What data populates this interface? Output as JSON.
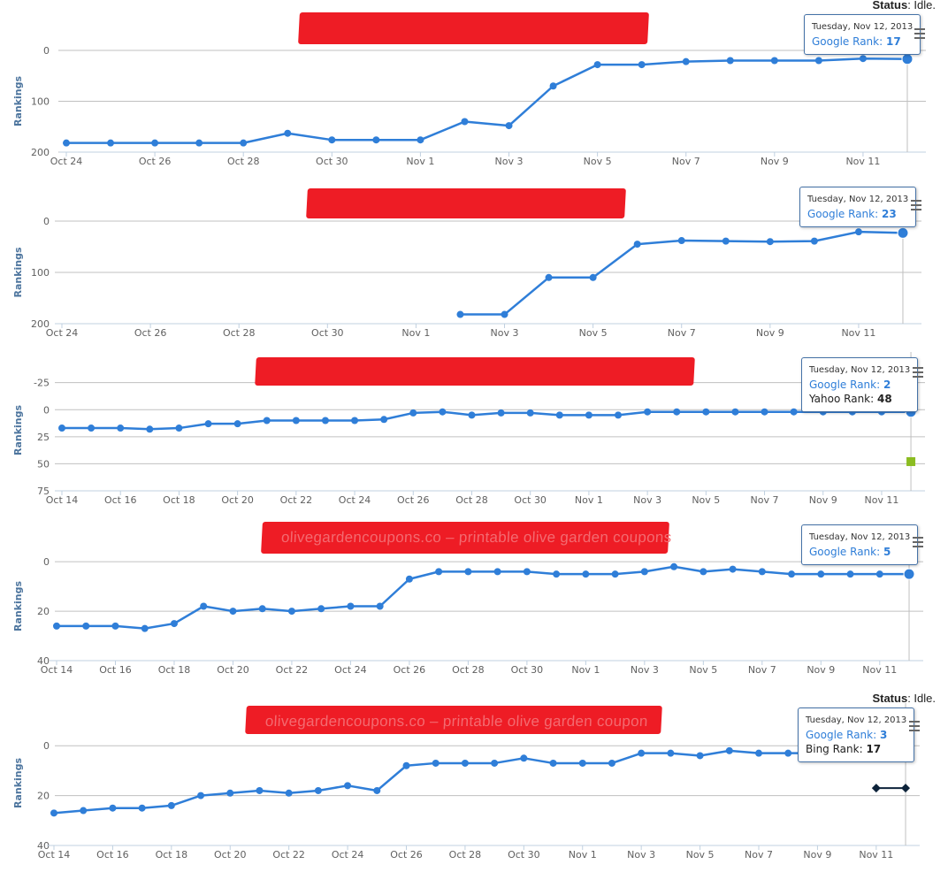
{
  "status": {
    "label": "Status",
    "value": " Idle."
  },
  "colors": {
    "line": "#2f7ed8",
    "grid": "#c0c0c0",
    "axis": "#c0d0e0",
    "yahoo": "#8bbc21",
    "bing": "#0d233a",
    "redaction": "#ee1c25"
  },
  "menu_icon": "hamburger-menu-icon",
  "chart_data": [
    {
      "type": "line",
      "title": "",
      "ylabel": "Rankings",
      "ylim": [
        200,
        0
      ],
      "yticks": [
        0,
        100,
        200
      ],
      "xticks": [
        "Oct 24",
        "Oct 26",
        "Oct 28",
        "Oct 30",
        "Nov 1",
        "Nov 3",
        "Nov 5",
        "Nov 7",
        "Nov 9",
        "Nov 11"
      ],
      "x_start": "Oct 24",
      "series": [
        {
          "name": "Google Rank",
          "x": [
            "Oct 24",
            "Oct 25",
            "Oct 26",
            "Oct 27",
            "Oct 28",
            "Oct 29",
            "Oct 30",
            "Oct 31",
            "Nov 1",
            "Nov 2",
            "Nov 3",
            "Nov 4",
            "Nov 5",
            "Nov 6",
            "Nov 7",
            "Nov 8",
            "Nov 9",
            "Nov 10",
            "Nov 11",
            "Nov 12"
          ],
          "values": [
            182,
            182,
            182,
            182,
            182,
            163,
            176,
            176,
            176,
            140,
            148,
            70,
            28,
            28,
            22,
            20,
            20,
            20,
            16,
            17
          ]
        }
      ],
      "tooltip": {
        "date": "Tuesday, Nov 12, 2013",
        "rows": [
          {
            "label": "Google Rank: ",
            "value": "17"
          }
        ]
      },
      "title_text": "",
      "status_visible": true
    },
    {
      "type": "line",
      "title": "",
      "ylabel": "Rankings",
      "ylim": [
        200,
        0
      ],
      "yticks": [
        0,
        100,
        200
      ],
      "xticks": [
        "Oct 24",
        "Oct 26",
        "Oct 28",
        "Oct 30",
        "Nov 1",
        "Nov 3",
        "Nov 5",
        "Nov 7",
        "Nov 9",
        "Nov 11"
      ],
      "x_start": "Oct 24",
      "series": [
        {
          "name": "Google Rank",
          "x": [
            "Nov 2",
            "Nov 3",
            "Nov 4",
            "Nov 5",
            "Nov 6",
            "Nov 7",
            "Nov 8",
            "Nov 9",
            "Nov 10",
            "Nov 11",
            "Nov 12"
          ],
          "values": [
            182,
            182,
            110,
            110,
            45,
            38,
            39,
            40,
            39,
            21,
            23
          ]
        }
      ],
      "tooltip": {
        "date": "Tuesday, Nov 12, 2013",
        "rows": [
          {
            "label": "Google Rank: ",
            "value": "23"
          }
        ]
      },
      "title_text": ""
    },
    {
      "type": "line",
      "title": "",
      "ylabel": "Rankings",
      "ylim": [
        75,
        -37
      ],
      "yticks": [
        -25,
        0,
        25,
        50,
        75
      ],
      "xticks": [
        "Oct 14",
        "Oct 16",
        "Oct 18",
        "Oct 20",
        "Oct 22",
        "Oct 24",
        "Oct 26",
        "Oct 28",
        "Oct 30",
        "Nov 1",
        "Nov 3",
        "Nov 5",
        "Nov 7",
        "Nov 9",
        "Nov 11"
      ],
      "x_start": "Oct 14",
      "series": [
        {
          "name": "Google Rank",
          "x": [
            "Oct 14",
            "Oct 15",
            "Oct 16",
            "Oct 17",
            "Oct 18",
            "Oct 19",
            "Oct 20",
            "Oct 21",
            "Oct 22",
            "Oct 23",
            "Oct 24",
            "Oct 25",
            "Oct 26",
            "Oct 27",
            "Oct 28",
            "Oct 29",
            "Oct 30",
            "Oct 31",
            "Nov 1",
            "Nov 2",
            "Nov 3",
            "Nov 4",
            "Nov 5",
            "Nov 6",
            "Nov 7",
            "Nov 8",
            "Nov 9",
            "Nov 10",
            "Nov 11",
            "Nov 12"
          ],
          "values": [
            17,
            17,
            17,
            18,
            17,
            13,
            13,
            10,
            10,
            10,
            10,
            9,
            3,
            2,
            5,
            3,
            3,
            5,
            5,
            5,
            2,
            2,
            2,
            2,
            2,
            2,
            2,
            2,
            2,
            2
          ]
        },
        {
          "name": "Yahoo Rank",
          "x": [
            "Nov 12"
          ],
          "values": [
            48
          ],
          "marker": "square"
        }
      ],
      "tooltip": {
        "date": "Tuesday, Nov 12, 2013",
        "rows": [
          {
            "label": "Google Rank: ",
            "value": "2"
          },
          {
            "label": "Yahoo Rank: ",
            "value": "48"
          }
        ]
      },
      "title_text": ""
    },
    {
      "type": "line",
      "title": "",
      "ylabel": "Rankings",
      "ylim": [
        40,
        -4
      ],
      "yticks": [
        0,
        20,
        40
      ],
      "xticks": [
        "Oct 14",
        "Oct 16",
        "Oct 18",
        "Oct 20",
        "Oct 22",
        "Oct 24",
        "Oct 26",
        "Oct 28",
        "Oct 30",
        "Nov 1",
        "Nov 3",
        "Nov 5",
        "Nov 7",
        "Nov 9",
        "Nov 11"
      ],
      "x_start": "Oct 14",
      "series": [
        {
          "name": "Google Rank",
          "x": [
            "Oct 14",
            "Oct 15",
            "Oct 16",
            "Oct 17",
            "Oct 18",
            "Oct 19",
            "Oct 20",
            "Oct 21",
            "Oct 22",
            "Oct 23",
            "Oct 24",
            "Oct 25",
            "Oct 26",
            "Oct 27",
            "Oct 28",
            "Oct 29",
            "Oct 30",
            "Oct 31",
            "Nov 1",
            "Nov 2",
            "Nov 3",
            "Nov 4",
            "Nov 5",
            "Nov 6",
            "Nov 7",
            "Nov 8",
            "Nov 9",
            "Nov 10",
            "Nov 11",
            "Nov 12"
          ],
          "values": [
            26,
            26,
            26,
            27,
            25,
            18,
            20,
            19,
            20,
            19,
            18,
            18,
            7,
            4,
            4,
            4,
            4,
            5,
            5,
            5,
            4,
            2,
            4,
            3,
            4,
            5,
            5,
            5,
            5,
            5
          ]
        }
      ],
      "tooltip": {
        "date": "Tuesday, Nov 12, 2013",
        "rows": [
          {
            "label": "Google Rank: ",
            "value": "5"
          }
        ]
      },
      "title_text": "olivegardencoupons.co – printable olive garden coupons"
    },
    {
      "type": "line",
      "title": "",
      "ylabel": "Rankings",
      "ylim": [
        40,
        -10
      ],
      "yticks": [
        0,
        20,
        40
      ],
      "xticks": [
        "Oct 14",
        "Oct 16",
        "Oct 18",
        "Oct 20",
        "Oct 22",
        "Oct 24",
        "Oct 26",
        "Oct 28",
        "Oct 30",
        "Nov 1",
        "Nov 3",
        "Nov 5",
        "Nov 7",
        "Nov 9",
        "Nov 11"
      ],
      "x_start": "Oct 14",
      "series": [
        {
          "name": "Google Rank",
          "x": [
            "Oct 14",
            "Oct 15",
            "Oct 16",
            "Oct 17",
            "Oct 18",
            "Oct 19",
            "Oct 20",
            "Oct 21",
            "Oct 22",
            "Oct 23",
            "Oct 24",
            "Oct 25",
            "Oct 26",
            "Oct 27",
            "Oct 28",
            "Oct 29",
            "Oct 30",
            "Oct 31",
            "Nov 1",
            "Nov 2",
            "Nov 3",
            "Nov 4",
            "Nov 5",
            "Nov 6",
            "Nov 7",
            "Nov 8",
            "Nov 9",
            "Nov 10",
            "Nov 11",
            "Nov 12"
          ],
          "values": [
            27,
            26,
            25,
            25,
            24,
            20,
            19,
            18,
            19,
            18,
            16,
            18,
            8,
            7,
            7,
            7,
            5,
            7,
            7,
            7,
            3,
            3,
            4,
            2,
            3,
            3,
            3,
            4,
            4,
            3
          ]
        },
        {
          "name": "Bing Rank",
          "x": [
            "Nov 11",
            "Nov 12"
          ],
          "values": [
            17,
            17
          ],
          "marker": "diamond"
        }
      ],
      "tooltip": {
        "date": "Tuesday, Nov 12, 2013",
        "rows": [
          {
            "label": "Google Rank: ",
            "value": "3"
          },
          {
            "label": "Bing Rank: ",
            "value": "17"
          }
        ]
      },
      "title_text": "olivegardencoupons.co – printable olive garden coupon",
      "status_visible": true
    }
  ]
}
